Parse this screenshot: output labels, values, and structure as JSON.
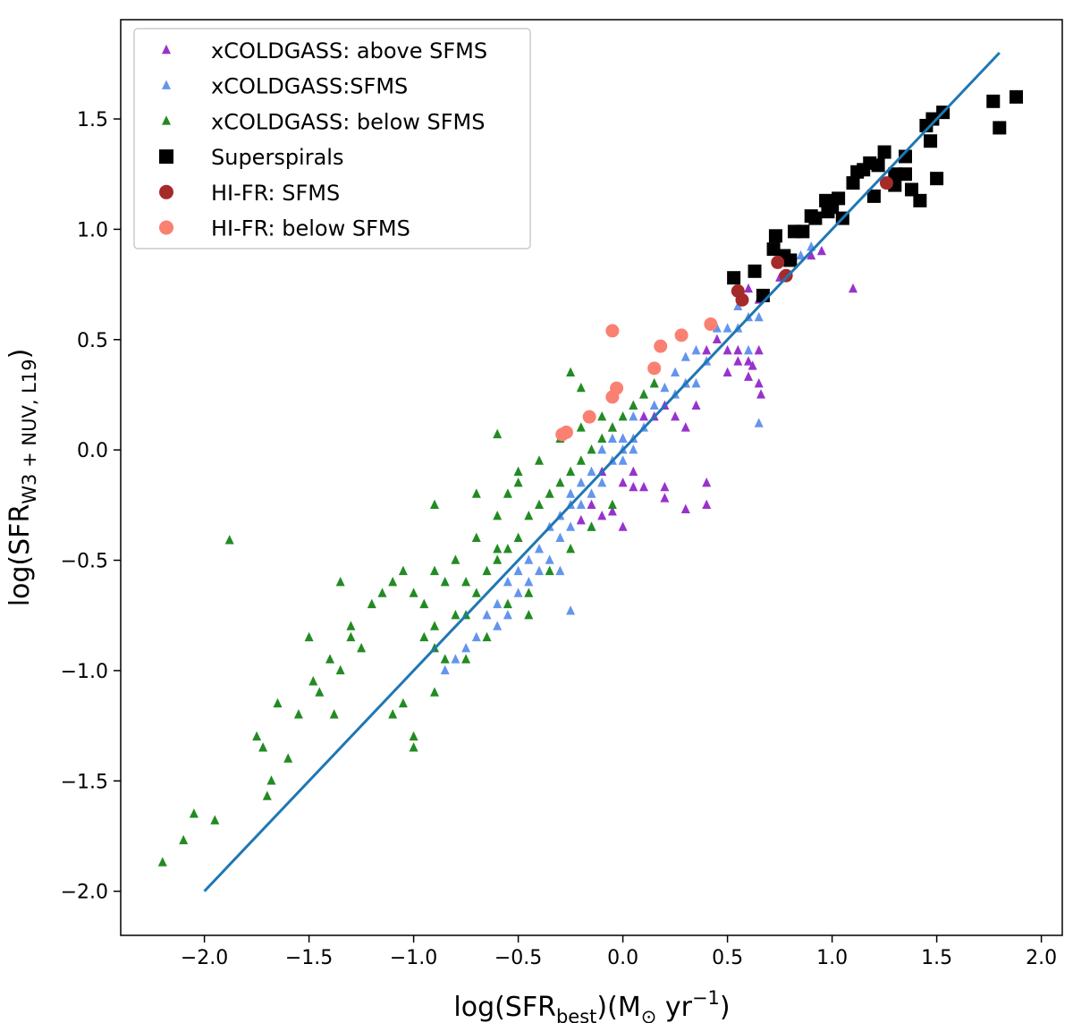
{
  "chart_data": {
    "type": "scatter",
    "title": "",
    "xlabel": {
      "main": "log(SFR",
      "sub": "best",
      "tail": ")(M",
      "sun": "⊙",
      "unit": " yr",
      "sup": "−1",
      "close": ")"
    },
    "ylabel": {
      "main": "log(SFR",
      "sub": "W3 + NUV, L19",
      "close": ")"
    },
    "xlim": [
      -2.4,
      2.1
    ],
    "ylim": [
      -2.2,
      1.95
    ],
    "xticks": [
      -2.0,
      -1.5,
      -1.0,
      -0.5,
      0.0,
      0.5,
      1.0,
      1.5,
      2.0
    ],
    "xtick_labels": [
      "−2.0",
      "−1.5",
      "−1.0",
      "−0.5",
      "0.0",
      "0.5",
      "1.0",
      "1.5",
      "2.0"
    ],
    "yticks": [
      -2.0,
      -1.5,
      -1.0,
      -0.5,
      0.0,
      0.5,
      1.0,
      1.5
    ],
    "ytick_labels": [
      "−2.0",
      "−1.5",
      "−1.0",
      "−0.5",
      "0.0",
      "0.5",
      "1.0",
      "1.5"
    ],
    "grid": false,
    "legend_position": "top-left",
    "line": {
      "name": "one-to-one",
      "x": [
        -2.0,
        1.8
      ],
      "y": [
        -2.0,
        1.8
      ],
      "color": "#1f77b4"
    },
    "series": [
      {
        "name": "xCOLDGASS: above SFMS",
        "marker": "triangle",
        "color": "#9932cc",
        "points": [
          [
            0.9,
            0.88
          ],
          [
            0.95,
            0.9
          ],
          [
            1.1,
            0.73
          ],
          [
            0.75,
            0.78
          ],
          [
            0.65,
            0.68
          ],
          [
            0.6,
            0.73
          ],
          [
            0.5,
            0.45
          ],
          [
            0.55,
            0.45
          ],
          [
            0.6,
            0.4
          ],
          [
            0.65,
            0.45
          ],
          [
            0.4,
            0.45
          ],
          [
            0.45,
            0.5
          ],
          [
            0.3,
            0.3
          ],
          [
            0.35,
            0.2
          ],
          [
            0.5,
            0.35
          ],
          [
            0.55,
            0.4
          ],
          [
            0.62,
            0.38
          ],
          [
            0.65,
            0.3
          ],
          [
            0.66,
            0.25
          ],
          [
            0.6,
            0.33
          ],
          [
            0.2,
            0.2
          ],
          [
            0.25,
            0.15
          ],
          [
            0.3,
            0.1
          ],
          [
            0.05,
            0.2
          ],
          [
            0.1,
            0.15
          ],
          [
            0.15,
            0.15
          ],
          [
            -0.05,
            0.1
          ],
          [
            0.0,
            0.05
          ],
          [
            0.05,
            -0.1
          ],
          [
            -0.1,
            -0.1
          ],
          [
            0.0,
            -0.15
          ],
          [
            0.05,
            -0.17
          ],
          [
            0.1,
            -0.17
          ],
          [
            0.2,
            -0.17
          ],
          [
            0.4,
            -0.15
          ],
          [
            0.2,
            -0.22
          ],
          [
            0.4,
            -0.25
          ],
          [
            0.3,
            -0.27
          ],
          [
            -0.05,
            -0.28
          ],
          [
            -0.15,
            -0.25
          ],
          [
            -0.1,
            -0.3
          ],
          [
            -0.2,
            -0.32
          ],
          [
            0.0,
            -0.35
          ]
        ]
      },
      {
        "name": "xCOLDGASS:SFMS",
        "marker": "triangle",
        "color": "#6495ed",
        "points": [
          [
            0.8,
            0.85
          ],
          [
            0.9,
            0.92
          ],
          [
            0.85,
            0.88
          ],
          [
            0.55,
            0.65
          ],
          [
            0.6,
            0.6
          ],
          [
            0.55,
            0.55
          ],
          [
            0.65,
            0.6
          ],
          [
            0.45,
            0.55
          ],
          [
            0.5,
            0.55
          ],
          [
            0.35,
            0.45
          ],
          [
            0.4,
            0.4
          ],
          [
            0.3,
            0.42
          ],
          [
            0.25,
            0.35
          ],
          [
            0.3,
            0.3
          ],
          [
            0.35,
            0.3
          ],
          [
            0.25,
            0.25
          ],
          [
            0.15,
            0.3
          ],
          [
            0.2,
            0.28
          ],
          [
            0.1,
            0.25
          ],
          [
            0.15,
            0.2
          ],
          [
            0.05,
            0.15
          ],
          [
            0.1,
            0.1
          ],
          [
            0.0,
            0.05
          ],
          [
            0.05,
            0.0
          ],
          [
            -0.05,
            0.05
          ],
          [
            0.0,
            -0.05
          ],
          [
            -0.1,
            0.0
          ],
          [
            -0.05,
            -0.05
          ],
          [
            -0.15,
            -0.1
          ],
          [
            -0.1,
            -0.15
          ],
          [
            -0.2,
            -0.15
          ],
          [
            -0.15,
            -0.2
          ],
          [
            -0.25,
            -0.2
          ],
          [
            -0.2,
            -0.25
          ],
          [
            -0.3,
            -0.3
          ],
          [
            -0.25,
            -0.35
          ],
          [
            -0.35,
            -0.35
          ],
          [
            -0.3,
            -0.4
          ],
          [
            -0.4,
            -0.45
          ],
          [
            -0.35,
            -0.5
          ],
          [
            -0.45,
            -0.5
          ],
          [
            -0.4,
            -0.55
          ],
          [
            -0.5,
            -0.55
          ],
          [
            -0.45,
            -0.6
          ],
          [
            -0.55,
            -0.6
          ],
          [
            -0.5,
            -0.65
          ],
          [
            -0.6,
            -0.7
          ],
          [
            -0.55,
            -0.75
          ],
          [
            -0.65,
            -0.75
          ],
          [
            -0.6,
            -0.8
          ],
          [
            -0.7,
            -0.85
          ],
          [
            -0.75,
            -0.9
          ],
          [
            -0.8,
            -0.95
          ],
          [
            -0.85,
            -1.0
          ],
          [
            -0.25,
            -0.73
          ],
          [
            -0.25,
            -0.25
          ],
          [
            0.0,
            0.0
          ],
          [
            0.05,
            0.05
          ],
          [
            -0.15,
            -0.35
          ],
          [
            -0.3,
            -0.55
          ],
          [
            0.6,
            0.45
          ],
          [
            0.65,
            0.12
          ]
        ]
      },
      {
        "name": "xCOLDGASS: below SFMS",
        "marker": "triangle",
        "color": "#228b22",
        "points": [
          [
            -2.2,
            -1.87
          ],
          [
            -2.1,
            -1.77
          ],
          [
            -2.05,
            -1.65
          ],
          [
            -1.95,
            -1.68
          ],
          [
            -1.88,
            -0.41
          ],
          [
            -1.75,
            -1.3
          ],
          [
            -1.72,
            -1.35
          ],
          [
            -1.7,
            -1.57
          ],
          [
            -1.68,
            -1.5
          ],
          [
            -1.65,
            -1.15
          ],
          [
            -1.6,
            -1.4
          ],
          [
            -1.55,
            -1.2
          ],
          [
            -1.5,
            -0.85
          ],
          [
            -1.48,
            -1.05
          ],
          [
            -1.45,
            -1.1
          ],
          [
            -1.4,
            -0.95
          ],
          [
            -1.38,
            -1.2
          ],
          [
            -1.35,
            -0.6
          ],
          [
            -1.3,
            -0.85
          ],
          [
            -1.25,
            -0.9
          ],
          [
            -1.2,
            -0.7
          ],
          [
            -1.15,
            -0.65
          ],
          [
            -1.1,
            -0.6
          ],
          [
            -1.05,
            -0.55
          ],
          [
            -1.0,
            -0.65
          ],
          [
            -0.95,
            -0.7
          ],
          [
            -0.9,
            -0.8
          ],
          [
            -1.0,
            -1.3
          ],
          [
            -1.0,
            -1.35
          ],
          [
            -1.1,
            -1.2
          ],
          [
            -1.05,
            -1.15
          ],
          [
            -0.9,
            -1.1
          ],
          [
            -0.85,
            -0.95
          ],
          [
            -0.8,
            -0.75
          ],
          [
            -0.75,
            -0.6
          ],
          [
            -0.7,
            -0.65
          ],
          [
            -0.65,
            -0.55
          ],
          [
            -0.6,
            -0.5
          ],
          [
            -0.55,
            -0.45
          ],
          [
            -0.5,
            -0.4
          ],
          [
            -0.45,
            -0.3
          ],
          [
            -0.4,
            -0.25
          ],
          [
            -0.35,
            -0.2
          ],
          [
            -0.3,
            -0.15
          ],
          [
            -0.25,
            -0.1
          ],
          [
            -0.2,
            -0.05
          ],
          [
            -0.15,
            0.0
          ],
          [
            -0.1,
            0.05
          ],
          [
            -0.05,
            0.1
          ],
          [
            0.0,
            0.15
          ],
          [
            0.05,
            0.2
          ],
          [
            0.1,
            0.25
          ],
          [
            0.15,
            0.3
          ],
          [
            -0.1,
            0.15
          ],
          [
            -0.2,
            0.1
          ],
          [
            -0.3,
            0.05
          ],
          [
            -0.4,
            -0.05
          ],
          [
            -0.5,
            -0.15
          ],
          [
            -0.6,
            -0.3
          ],
          [
            -0.7,
            -0.4
          ],
          [
            -0.8,
            -0.5
          ],
          [
            -0.9,
            -0.55
          ],
          [
            -0.85,
            -0.6
          ],
          [
            -0.75,
            -0.75
          ],
          [
            -0.65,
            -0.85
          ],
          [
            -0.55,
            -0.7
          ],
          [
            -0.45,
            -0.65
          ],
          [
            -0.35,
            -0.55
          ],
          [
            -0.25,
            -0.45
          ],
          [
            -0.15,
            -0.35
          ],
          [
            -0.05,
            -0.25
          ],
          [
            -0.6,
            0.07
          ],
          [
            -0.25,
            0.35
          ],
          [
            -0.2,
            0.28
          ],
          [
            -0.55,
            -0.2
          ],
          [
            -0.5,
            -0.1
          ],
          [
            -0.7,
            -0.2
          ],
          [
            -0.9,
            -0.25
          ],
          [
            -1.3,
            -0.8
          ],
          [
            -1.35,
            -1.0
          ],
          [
            -0.9,
            -0.9
          ],
          [
            -0.95,
            -0.85
          ],
          [
            -0.75,
            -0.95
          ],
          [
            -0.6,
            -0.45
          ],
          [
            -0.45,
            -0.75
          ]
        ]
      },
      {
        "name": "Superspirals",
        "marker": "square",
        "color": "#000000",
        "points": [
          [
            0.53,
            0.78
          ],
          [
            0.63,
            0.81
          ],
          [
            0.67,
            0.7
          ],
          [
            0.72,
            0.91
          ],
          [
            0.73,
            0.97
          ],
          [
            0.77,
            0.88
          ],
          [
            0.8,
            0.86
          ],
          [
            0.82,
            0.99
          ],
          [
            0.86,
            0.99
          ],
          [
            0.9,
            1.06
          ],
          [
            0.92,
            1.05
          ],
          [
            0.97,
            1.13
          ],
          [
            1.0,
            1.12
          ],
          [
            1.03,
            1.14
          ],
          [
            1.05,
            1.05
          ],
          [
            1.1,
            1.21
          ],
          [
            1.12,
            1.26
          ],
          [
            1.15,
            1.27
          ],
          [
            1.18,
            1.3
          ],
          [
            1.2,
            1.15
          ],
          [
            1.22,
            1.29
          ],
          [
            1.25,
            1.35
          ],
          [
            1.3,
            1.25
          ],
          [
            1.35,
            1.33
          ],
          [
            1.35,
            1.25
          ],
          [
            1.38,
            1.18
          ],
          [
            1.42,
            1.13
          ],
          [
            1.45,
            1.47
          ],
          [
            1.48,
            1.5
          ],
          [
            1.5,
            1.23
          ],
          [
            1.53,
            1.53
          ],
          [
            1.47,
            1.4
          ],
          [
            1.77,
            1.58
          ],
          [
            1.8,
            1.46
          ],
          [
            1.88,
            1.6
          ],
          [
            1.0,
            1.1
          ],
          [
            1.3,
            1.2
          ],
          [
            0.98,
            1.08
          ]
        ]
      },
      {
        "name": "HI-FR: SFMS",
        "marker": "circle",
        "color": "#a52a2a",
        "points": [
          [
            0.55,
            0.72
          ],
          [
            0.57,
            0.68
          ],
          [
            0.74,
            0.85
          ],
          [
            0.78,
            0.79
          ],
          [
            1.26,
            1.21
          ]
        ]
      },
      {
        "name": "HI-FR: below SFMS",
        "marker": "circle",
        "color": "#fa8072",
        "points": [
          [
            -0.29,
            0.07
          ],
          [
            -0.27,
            0.08
          ],
          [
            -0.16,
            0.15
          ],
          [
            -0.05,
            0.24
          ],
          [
            -0.03,
            0.28
          ],
          [
            -0.05,
            0.54
          ],
          [
            0.15,
            0.37
          ],
          [
            0.18,
            0.47
          ],
          [
            0.28,
            0.52
          ],
          [
            0.42,
            0.57
          ]
        ]
      }
    ]
  }
}
